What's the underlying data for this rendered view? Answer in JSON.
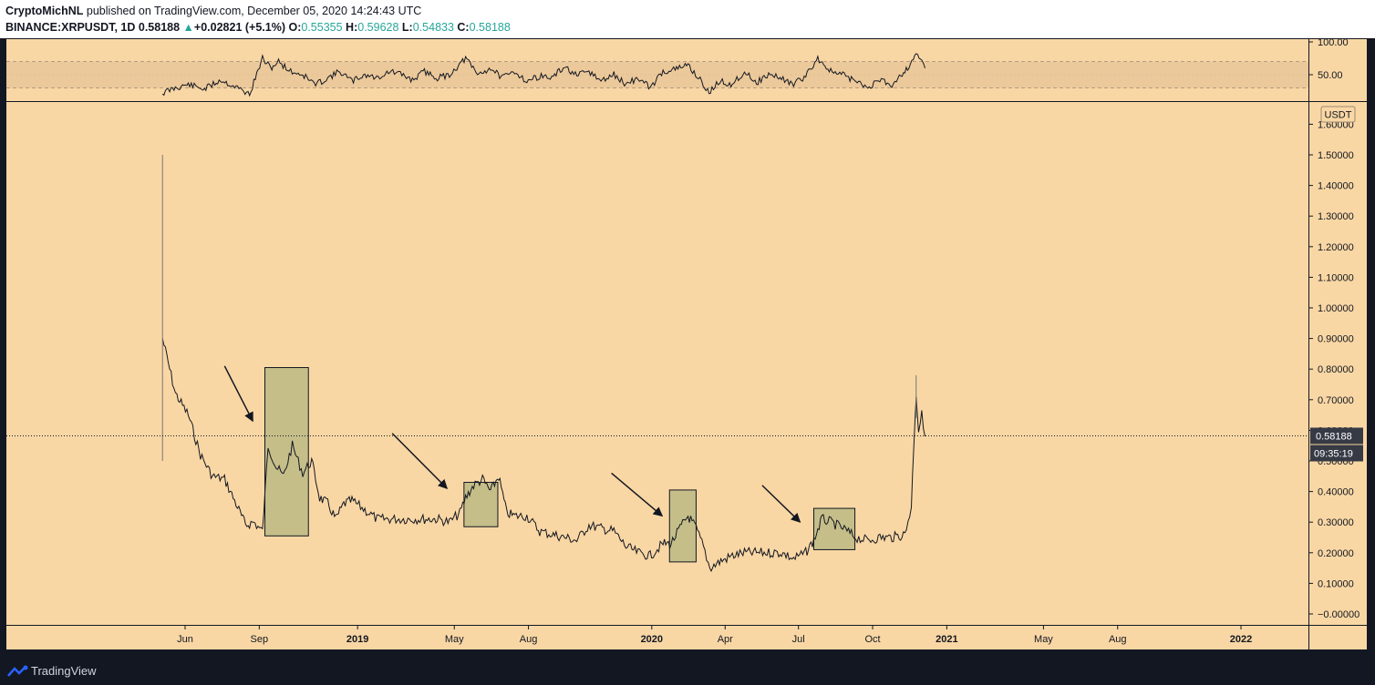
{
  "header": {
    "author": "CryptoMichNL",
    "published_text": "published on TradingView.com, December 05, 2020 14:24:43 UTC",
    "symbol": "BINANCE:XRPUSDT, 1D",
    "last": "0.58188",
    "change_arrow": "▲",
    "change": "+0.02821 (+5.1%)",
    "o_label": "O:",
    "o_value": "0.55355",
    "h_label": "H:",
    "h_value": "0.59628",
    "l_label": "L:",
    "l_value": "0.54833",
    "c_label": "C:",
    "c_value": "0.58188"
  },
  "footer": {
    "brand": "TradingView"
  },
  "colors": {
    "background": "#131722",
    "pane": "#f9d7a4",
    "rsi_band": "#ecc99a",
    "box_fill": "#c5be89",
    "line": "#131722",
    "up": "#26a69a",
    "label_bg": "#363a45"
  },
  "chart_data": [
    {
      "type": "line",
      "indicator": "RSI",
      "ylim": [
        0,
        100
      ],
      "y_ticks": [
        "100.00",
        "50.00"
      ],
      "band": [
        30,
        70
      ],
      "x": [
        "2018-05-04",
        "2018-05-20",
        "2018-06-05",
        "2018-06-25",
        "2018-07-15",
        "2018-08-05",
        "2018-08-20",
        "2018-09-05",
        "2018-09-15",
        "2018-09-25",
        "2018-10-10",
        "2018-10-25",
        "2018-11-10",
        "2018-11-25",
        "2018-12-10",
        "2018-12-25",
        "2019-01-10",
        "2019-01-25",
        "2019-02-10",
        "2019-02-25",
        "2019-03-10",
        "2019-03-25",
        "2019-04-10",
        "2019-04-25",
        "2019-05-15",
        "2019-05-30",
        "2019-06-15",
        "2019-06-30",
        "2019-07-15",
        "2019-07-30",
        "2019-08-15",
        "2019-08-30",
        "2019-09-15",
        "2019-09-30",
        "2019-10-15",
        "2019-10-30",
        "2019-11-15",
        "2019-11-30",
        "2019-12-15",
        "2019-12-30",
        "2020-01-15",
        "2020-01-30",
        "2020-02-15",
        "2020-03-01",
        "2020-03-12",
        "2020-03-25",
        "2020-04-10",
        "2020-04-25",
        "2020-05-10",
        "2020-05-25",
        "2020-06-10",
        "2020-06-25",
        "2020-07-10",
        "2020-07-25",
        "2020-08-10",
        "2020-08-25",
        "2020-09-10",
        "2020-09-25",
        "2020-10-10",
        "2020-10-25",
        "2020-11-05",
        "2020-11-15",
        "2020-11-24",
        "2020-12-05"
      ],
      "y": [
        22,
        30,
        35,
        28,
        42,
        30,
        20,
        75,
        60,
        70,
        55,
        50,
        35,
        45,
        55,
        40,
        50,
        45,
        55,
        50,
        42,
        55,
        45,
        50,
        75,
        50,
        60,
        45,
        55,
        40,
        48,
        45,
        62,
        48,
        55,
        40,
        50,
        35,
        45,
        30,
        55,
        58,
        65,
        42,
        22,
        40,
        35,
        55,
        38,
        50,
        45,
        35,
        48,
        75,
        55,
        50,
        40,
        30,
        42,
        35,
        50,
        62,
        85,
        60
      ]
    },
    {
      "type": "line",
      "title": "XRPUSDT",
      "ylabel": "USDT",
      "ylim": [
        -0.03,
        1.62
      ],
      "y_ticks": [
        "1.60000",
        "1.50000",
        "1.40000",
        "1.30000",
        "1.20000",
        "1.10000",
        "1.00000",
        "0.90000",
        "0.80000",
        "0.70000",
        "0.60000",
        "0.50000",
        "0.40000",
        "0.30000",
        "0.20000",
        "0.10000",
        "−0.00000"
      ],
      "x_ticks": [
        "Jun",
        "Sep",
        "2019",
        "May",
        "Aug",
        "2020",
        "Apr",
        "Jul",
        "Oct",
        "2021",
        "May",
        "Aug",
        "2022"
      ],
      "x": [
        "2018-05-04",
        "2018-05-20",
        "2018-06-05",
        "2018-06-20",
        "2018-07-05",
        "2018-07-20",
        "2018-08-05",
        "2018-08-15",
        "2018-08-25",
        "2018-09-05",
        "2018-09-12",
        "2018-09-22",
        "2018-10-01",
        "2018-10-12",
        "2018-10-25",
        "2018-11-05",
        "2018-11-15",
        "2018-11-25",
        "2018-12-05",
        "2018-12-15",
        "2018-12-25",
        "2019-01-10",
        "2019-01-25",
        "2019-02-10",
        "2019-02-25",
        "2019-03-10",
        "2019-03-25",
        "2019-04-10",
        "2019-04-25",
        "2019-05-08",
        "2019-05-15",
        "2019-05-25",
        "2019-06-05",
        "2019-06-15",
        "2019-06-25",
        "2019-07-05",
        "2019-07-15",
        "2019-07-30",
        "2019-08-15",
        "2019-08-30",
        "2019-09-15",
        "2019-09-30",
        "2019-10-15",
        "2019-10-30",
        "2019-11-15",
        "2019-11-30",
        "2019-12-15",
        "2019-12-30",
        "2020-01-15",
        "2020-01-25",
        "2020-02-05",
        "2020-02-15",
        "2020-02-25",
        "2020-03-05",
        "2020-03-13",
        "2020-03-25",
        "2020-04-10",
        "2020-04-25",
        "2020-05-10",
        "2020-05-25",
        "2020-06-10",
        "2020-06-25",
        "2020-07-10",
        "2020-07-20",
        "2020-07-30",
        "2020-08-10",
        "2020-08-25",
        "2020-09-10",
        "2020-09-25",
        "2020-10-10",
        "2020-10-25",
        "2020-11-10",
        "2020-11-18",
        "2020-11-21",
        "2020-11-24",
        "2020-11-27",
        "2020-12-01",
        "2020-12-05"
      ],
      "y": [
        0.9,
        0.72,
        0.65,
        0.52,
        0.45,
        0.44,
        0.35,
        0.29,
        0.3,
        0.27,
        0.55,
        0.48,
        0.45,
        0.55,
        0.46,
        0.5,
        0.38,
        0.36,
        0.31,
        0.36,
        0.37,
        0.34,
        0.31,
        0.31,
        0.31,
        0.31,
        0.31,
        0.31,
        0.3,
        0.33,
        0.38,
        0.42,
        0.44,
        0.4,
        0.45,
        0.33,
        0.32,
        0.32,
        0.27,
        0.26,
        0.25,
        0.24,
        0.29,
        0.28,
        0.27,
        0.22,
        0.2,
        0.19,
        0.23,
        0.23,
        0.28,
        0.32,
        0.28,
        0.22,
        0.15,
        0.17,
        0.19,
        0.2,
        0.2,
        0.2,
        0.2,
        0.18,
        0.2,
        0.24,
        0.31,
        0.3,
        0.28,
        0.25,
        0.24,
        0.25,
        0.25,
        0.26,
        0.35,
        0.55,
        0.72,
        0.6,
        0.65,
        0.58
      ]
    }
  ],
  "annotations": {
    "consolidation_boxes": [
      {
        "start": "2018-09-08",
        "end": "2018-11-01",
        "low": 0.255,
        "high": 0.805
      },
      {
        "start": "2019-05-13",
        "end": "2019-06-24",
        "low": 0.285,
        "high": 0.43
      },
      {
        "start": "2020-01-23",
        "end": "2020-02-25",
        "low": 0.17,
        "high": 0.405
      },
      {
        "start": "2020-07-20",
        "end": "2020-09-09",
        "low": 0.21,
        "high": 0.345
      }
    ],
    "arrows": [
      {
        "from": "2018-07-20",
        "to": "2018-08-24",
        "from_price": 0.81,
        "to_price": 0.63
      },
      {
        "from": "2019-02-13",
        "to": "2019-04-22",
        "from_price": 0.59,
        "to_price": 0.41
      },
      {
        "from": "2019-11-12",
        "to": "2020-01-14",
        "from_price": 0.46,
        "to_price": 0.32
      },
      {
        "from": "2020-05-17",
        "to": "2020-07-03",
        "from_price": 0.42,
        "to_price": 0.3
      }
    ],
    "price_label": "0.58188",
    "price_value": 0.58188,
    "countdown_label": "09:35:19"
  }
}
